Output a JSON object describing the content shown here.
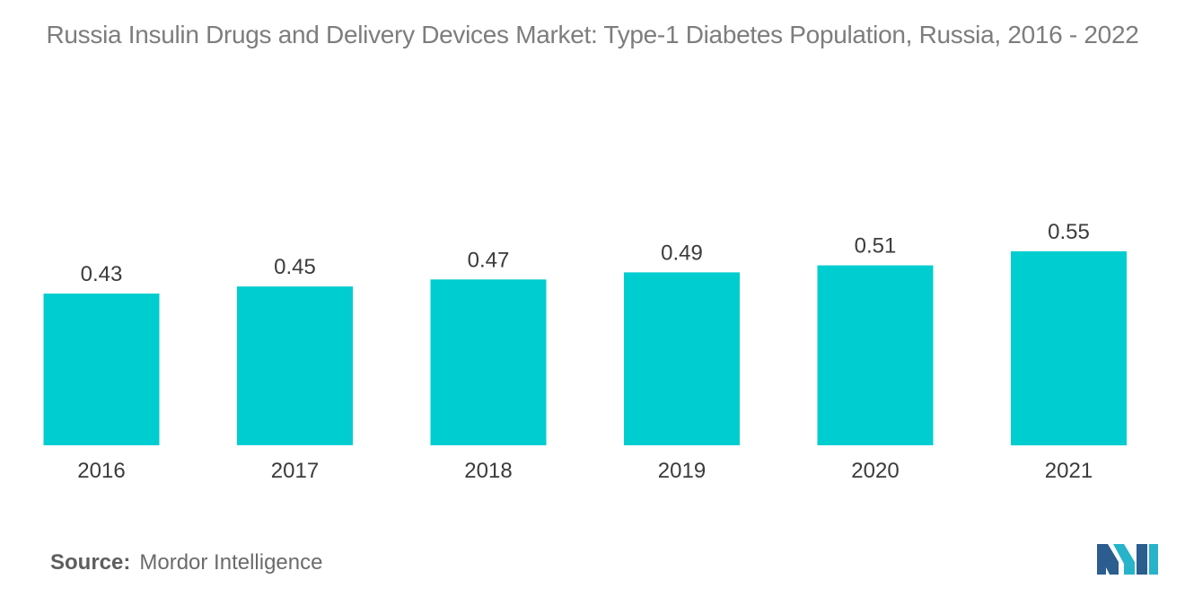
{
  "chart_data": {
    "type": "bar",
    "title": "Russia Insulin Drugs and Delivery Devices Market: Type-1 Diabetes Population, Russia, 2016 - 2022",
    "xlabel": "",
    "ylabel": "",
    "categories": [
      "2016",
      "2017",
      "2018",
      "2019",
      "2020",
      "2021"
    ],
    "values": [
      0.43,
      0.45,
      0.47,
      0.49,
      0.51,
      0.55
    ],
    "value_labels": [
      "0.43",
      "0.45",
      "0.47",
      "0.49",
      "0.51",
      "0.55"
    ],
    "ylim": [
      0,
      0.6
    ],
    "grid": false,
    "legend": "none",
    "bar_color": "#00cdd0"
  },
  "source": {
    "label": "Source:",
    "text": "Mordor Intelligence"
  },
  "colors": {
    "logo_dark": "#2b5d8f",
    "logo_teal": "#27b3c9"
  }
}
